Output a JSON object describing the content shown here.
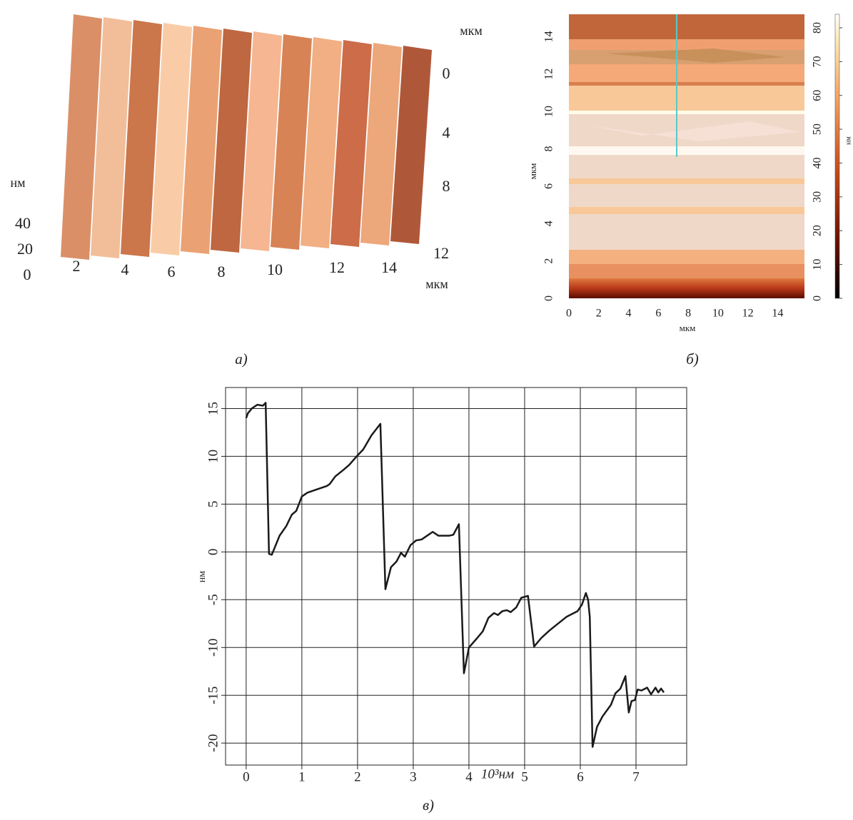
{
  "chart_data": [
    {
      "type": "surface3d",
      "caption": "а)",
      "xlabel": "мкм",
      "ylabel": "мкм",
      "zlabel": "нм",
      "xticks": [
        2,
        4,
        6,
        8,
        10,
        12,
        14
      ],
      "yticks": [
        0,
        4,
        8,
        12
      ],
      "zticks": [
        0,
        20,
        40
      ]
    },
    {
      "type": "heatmap",
      "caption": "б)",
      "xlabel": "мкм",
      "ylabel": "мкм",
      "colorbar_label": "нм",
      "xlim": [
        0,
        15.8
      ],
      "ylim": [
        0,
        15.2
      ],
      "xticks": [
        0,
        2,
        4,
        6,
        8,
        10,
        12,
        14
      ],
      "yticks": [
        0,
        2,
        4,
        6,
        8,
        10,
        12,
        14
      ],
      "clim": [
        0,
        84
      ],
      "cticks": [
        0,
        10,
        20,
        30,
        40,
        50,
        60,
        70,
        80
      ]
    },
    {
      "type": "line",
      "caption": "в)",
      "xlabel": "10³нм",
      "ylabel": "нм",
      "xlim": [
        -0.37,
        7.91
      ],
      "ylim": [
        -22.3,
        17.2
      ],
      "xticks": [
        0,
        1,
        2,
        3,
        4,
        5,
        6,
        7
      ],
      "yticks": [
        15,
        10,
        5,
        0,
        -5,
        -10,
        -15,
        -20
      ],
      "grid": true,
      "series": [
        {
          "color": "#1a1a1a",
          "x": [
            0,
            0.03,
            0.1,
            0.2,
            0.3,
            0.35,
            0.41,
            0.46,
            0.6,
            0.72,
            0.82,
            0.9,
            1,
            1.1,
            1.3,
            1.45,
            1.5,
            1.6,
            1.75,
            1.85,
            2,
            2.1,
            2.25,
            2.41,
            2.5,
            2.6,
            2.7,
            2.78,
            2.85,
            2.95,
            3.05,
            3.15,
            3.25,
            3.35,
            3.45,
            3.65,
            3.72,
            3.82,
            3.91,
            4.0,
            4.15,
            4.25,
            4.35,
            4.45,
            4.52,
            4.6,
            4.68,
            4.75,
            4.85,
            4.94,
            5.06,
            5.17,
            5.3,
            5.45,
            5.6,
            5.75,
            5.85,
            5.95,
            6.03,
            6.1,
            6.14,
            6.17,
            6.22,
            6.3,
            6.4,
            6.55,
            6.63,
            6.72,
            6.81,
            6.87,
            6.92,
            6.98,
            7.03,
            7.1,
            7.2,
            7.27,
            7.35,
            7.4,
            7.45,
            7.5
          ],
          "values": [
            14,
            14.5,
            15,
            15.4,
            15.3,
            15.6,
            -0.2,
            -0.3,
            1.7,
            2.7,
            3.9,
            4.3,
            5.8,
            6.2,
            6.6,
            6.9,
            7.1,
            7.9,
            8.6,
            9.1,
            10.1,
            10.7,
            12.2,
            13.4,
            -3.9,
            -1.6,
            -1,
            -0.1,
            -0.5,
            0.7,
            1.2,
            1.3,
            1.7,
            2.1,
            1.7,
            1.7,
            1.8,
            2.9,
            -12.7,
            -10,
            -9,
            -8.3,
            -6.9,
            -6.4,
            -6.6,
            -6.2,
            -6.1,
            -6.3,
            -5.8,
            -4.8,
            -4.6,
            -9.9,
            -9,
            -8.2,
            -7.5,
            -6.8,
            -6.5,
            -6.2,
            -5.5,
            -4.3,
            -5,
            -6.8,
            -20.4,
            -18.3,
            -17.2,
            -16,
            -14.8,
            -14.3,
            -13,
            -16.8,
            -15.6,
            -15.5,
            -14.4,
            -14.5,
            -14.2,
            -14.9,
            -14.2,
            -14.7,
            -14.3,
            -14.7
          ]
        }
      ]
    }
  ]
}
